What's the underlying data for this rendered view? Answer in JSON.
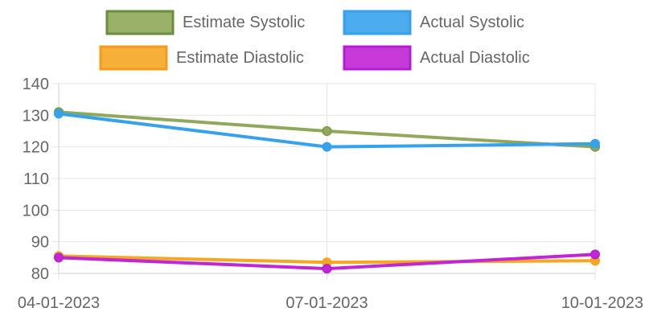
{
  "chart_data": {
    "type": "line",
    "categories": [
      "04-01-2023",
      "07-01-2023",
      "10-01-2023"
    ],
    "series": [
      {
        "name": "Estimate Systolic",
        "values": [
          131,
          125,
          120
        ],
        "color": "#8fa85a",
        "border": "#6a8f3a"
      },
      {
        "name": "Actual Systolic",
        "values": [
          130.5,
          120,
          121
        ],
        "color": "#36a2eb",
        "border": "#36a2eb"
      },
      {
        "name": "Estimate Diastolic",
        "values": [
          85.5,
          83.5,
          84
        ],
        "color": "#f5a623",
        "border": "#f59b1a"
      },
      {
        "name": "Actual Diastolic",
        "values": [
          85,
          81.5,
          86
        ],
        "color": "#c026d3",
        "border": "#b31bd6"
      }
    ],
    "ylim": [
      80,
      140
    ],
    "yticks": [
      80,
      90,
      100,
      110,
      120,
      130,
      140
    ],
    "grid": true,
    "legend_position": "top",
    "title": "",
    "xlabel": "",
    "ylabel": ""
  }
}
